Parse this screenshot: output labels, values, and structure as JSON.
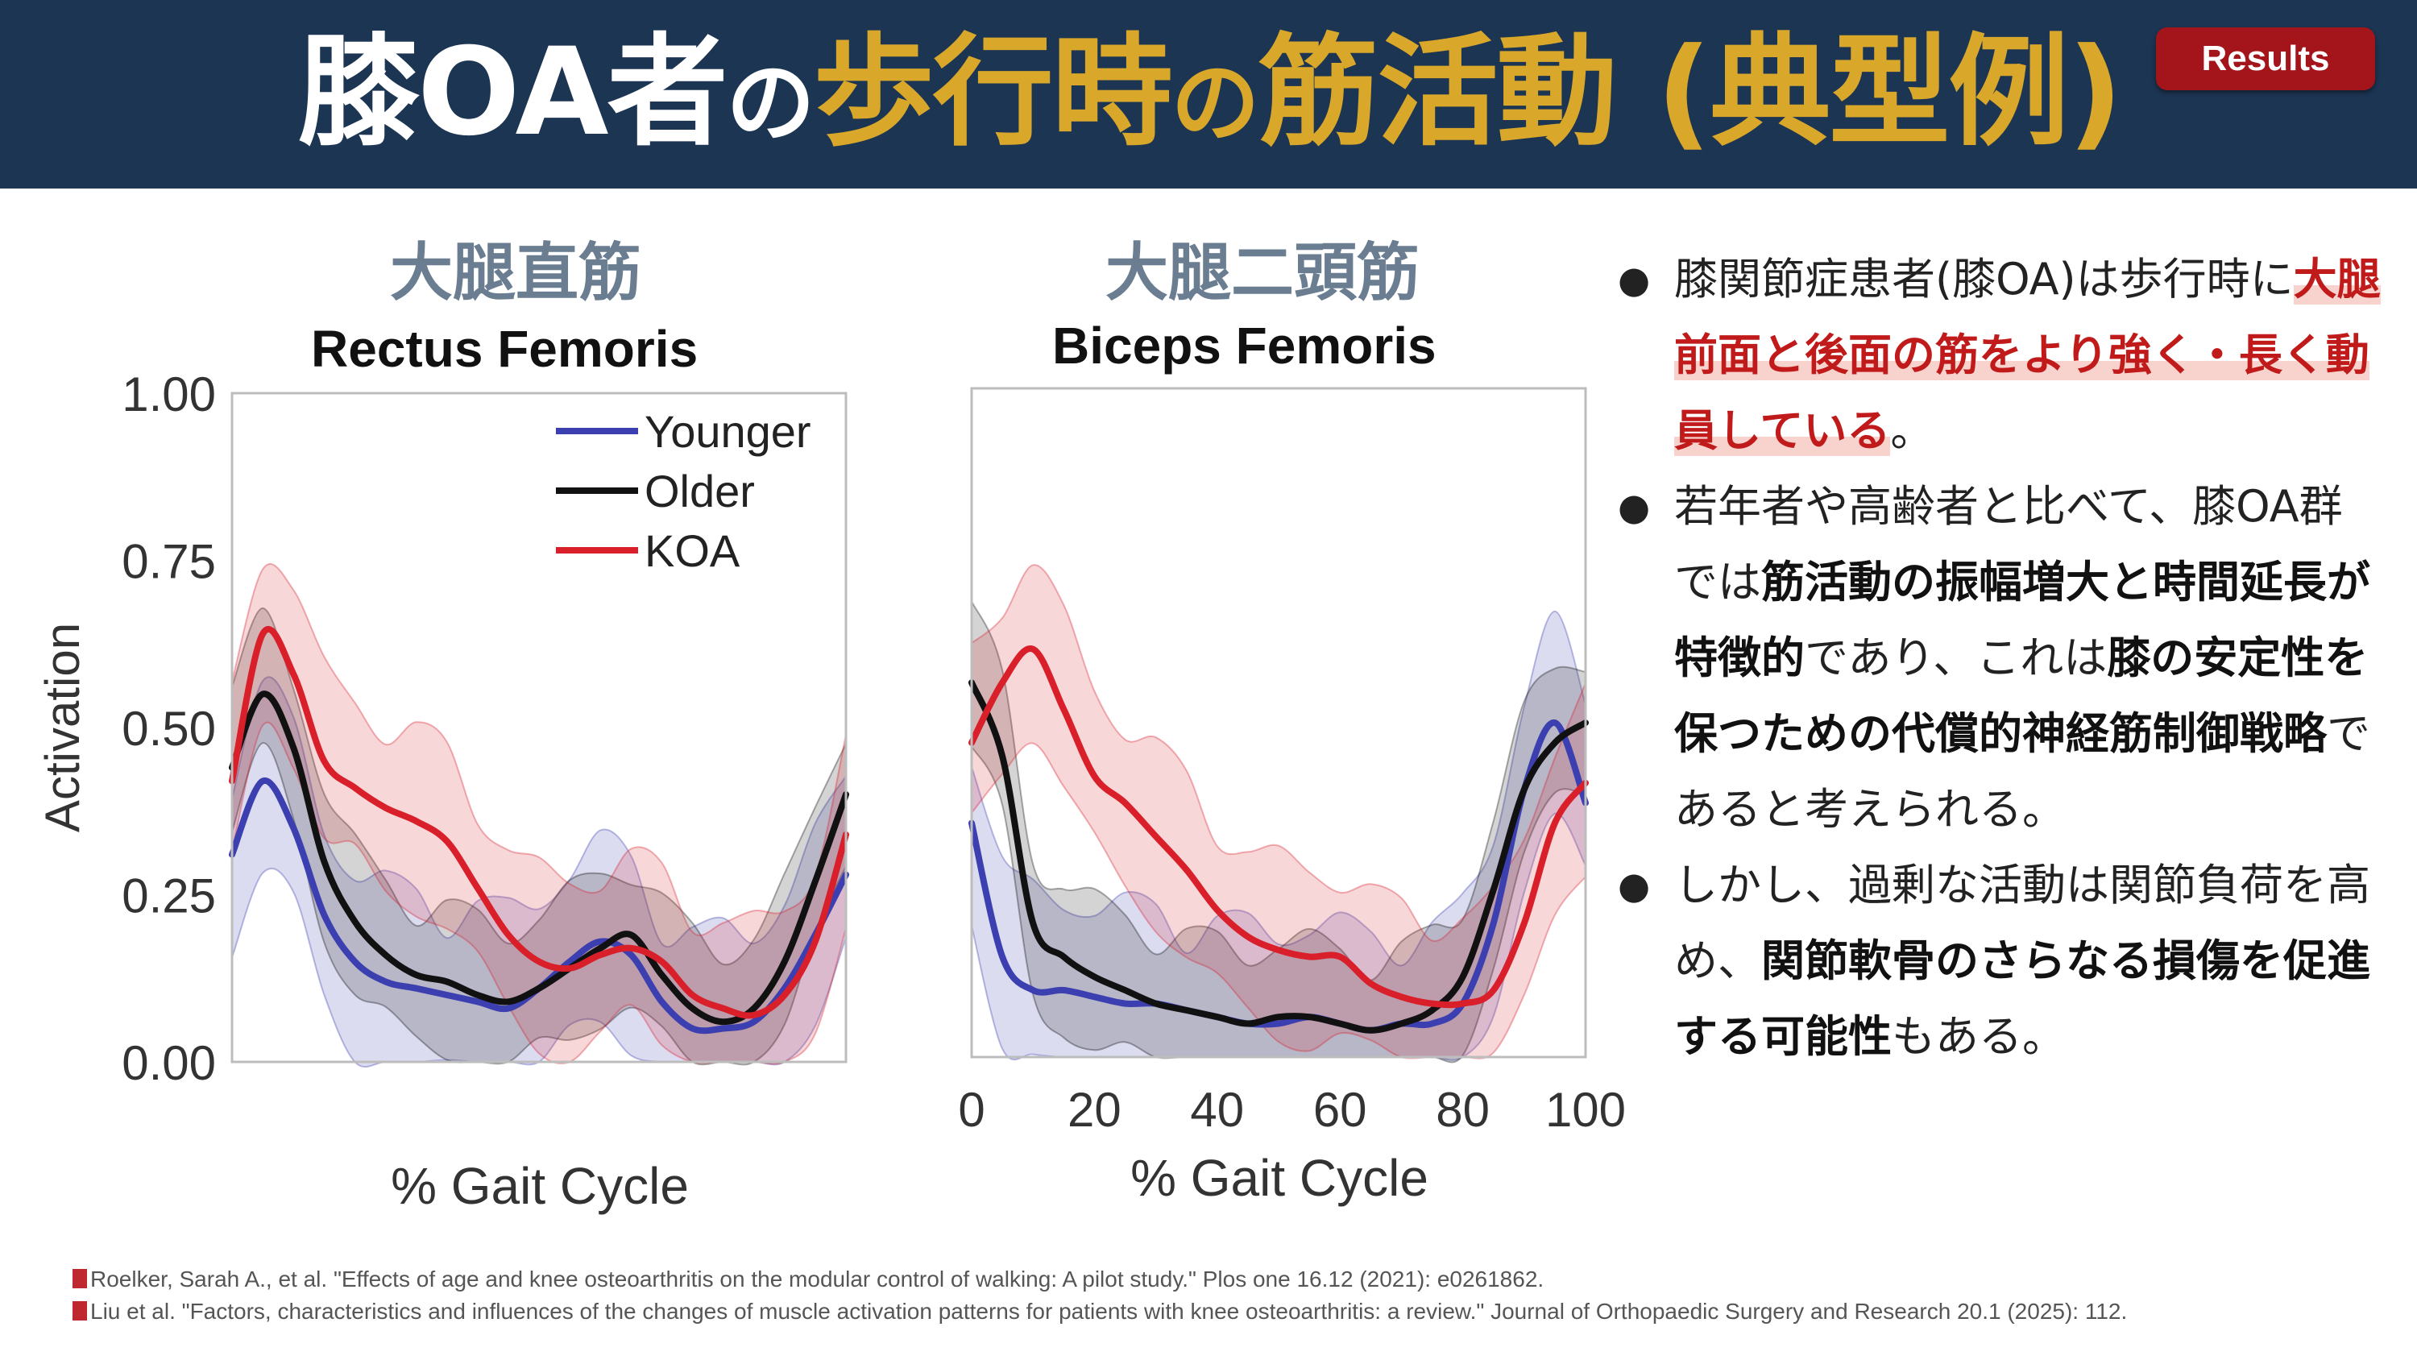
{
  "header": {
    "title_part1": "膝OA者",
    "title_part2": "の",
    "title_part3": "歩行時",
    "title_part4": "の",
    "title_part5": "筋活動 (典型例)",
    "badge": "Results",
    "colors": {
      "background": "#1c3553",
      "accent": "#d9a72a",
      "badge": "#a3141b"
    }
  },
  "charts": [
    {
      "title_jp": "大腿直筋",
      "title_en": "Rectus Femoris"
    },
    {
      "title_jp": "大腿二頭筋",
      "title_en": "Biceps Femoris"
    }
  ],
  "chart_data": [
    {
      "type": "line",
      "title": "Rectus Femoris",
      "xlabel": "% Gait Cycle",
      "ylabel": "Activation",
      "xlim": [
        0,
        100
      ],
      "ylim": [
        0,
        1
      ],
      "yticks": [
        "0.00",
        "0.25",
        "0.50",
        "0.75",
        "1.00"
      ],
      "xticks": [],
      "legend": "top-right",
      "x": [
        0,
        5,
        10,
        15,
        20,
        25,
        30,
        35,
        40,
        45,
        50,
        55,
        60,
        65,
        70,
        75,
        80,
        85,
        90,
        95,
        100
      ],
      "series": [
        {
          "name": "Younger",
          "color": "#3b3fb0",
          "values": [
            0.31,
            0.42,
            0.35,
            0.22,
            0.15,
            0.12,
            0.11,
            0.1,
            0.09,
            0.08,
            0.11,
            0.15,
            0.18,
            0.16,
            0.09,
            0.05,
            0.05,
            0.06,
            0.11,
            0.19,
            0.28
          ]
        },
        {
          "name": "Older",
          "color": "#111111",
          "values": [
            0.44,
            0.55,
            0.47,
            0.3,
            0.21,
            0.16,
            0.13,
            0.12,
            0.1,
            0.09,
            0.11,
            0.14,
            0.17,
            0.19,
            0.13,
            0.08,
            0.06,
            0.08,
            0.15,
            0.27,
            0.4
          ]
        },
        {
          "name": "KOA",
          "color": "#d81f2a",
          "values": [
            0.42,
            0.64,
            0.58,
            0.45,
            0.41,
            0.38,
            0.36,
            0.33,
            0.26,
            0.19,
            0.15,
            0.14,
            0.16,
            0.17,
            0.15,
            0.1,
            0.08,
            0.07,
            0.1,
            0.18,
            0.34
          ]
        }
      ]
    },
    {
      "type": "line",
      "title": "Biceps Femoris",
      "xlabel": "% Gait Cycle",
      "ylabel": "",
      "xlim": [
        0,
        100
      ],
      "ylim": [
        0,
        1
      ],
      "yticks": [],
      "xticks": [
        "0",
        "20",
        "40",
        "60",
        "80",
        "100"
      ],
      "x": [
        0,
        5,
        10,
        15,
        20,
        25,
        30,
        35,
        40,
        45,
        50,
        55,
        60,
        65,
        70,
        75,
        80,
        85,
        90,
        95,
        100
      ],
      "series": [
        {
          "name": "Younger",
          "color": "#3b3fb0",
          "values": [
            0.35,
            0.15,
            0.1,
            0.1,
            0.09,
            0.08,
            0.08,
            0.07,
            0.06,
            0.05,
            0.05,
            0.06,
            0.05,
            0.04,
            0.05,
            0.05,
            0.08,
            0.2,
            0.4,
            0.5,
            0.38
          ]
        },
        {
          "name": "Older",
          "color": "#111111",
          "values": [
            0.56,
            0.45,
            0.2,
            0.15,
            0.12,
            0.1,
            0.08,
            0.07,
            0.06,
            0.05,
            0.06,
            0.06,
            0.05,
            0.04,
            0.05,
            0.07,
            0.12,
            0.25,
            0.4,
            0.47,
            0.5
          ]
        },
        {
          "name": "KOA",
          "color": "#d81f2a",
          "values": [
            0.47,
            0.56,
            0.61,
            0.52,
            0.42,
            0.38,
            0.33,
            0.28,
            0.22,
            0.18,
            0.16,
            0.15,
            0.15,
            0.11,
            0.09,
            0.08,
            0.08,
            0.1,
            0.2,
            0.35,
            0.41
          ]
        }
      ]
    }
  ],
  "bullets": [
    {
      "segments": [
        {
          "t": "膝関節症患者(膝OA)は歩行時に",
          "s": "n"
        },
        {
          "t": "大腿前面と後面の筋をより強く・長く動員している",
          "s": "hl"
        },
        {
          "t": "。",
          "s": "n"
        }
      ]
    },
    {
      "segments": [
        {
          "t": "若年者や高齢者と比べて、膝OA群では",
          "s": "n"
        },
        {
          "t": "筋活動の振幅増大と時間延長が特徴的",
          "s": "b"
        },
        {
          "t": "であり、これは",
          "s": "n"
        },
        {
          "t": "膝の安定性を保つための代償的神経筋制御戦略",
          "s": "b"
        },
        {
          "t": "であると考えられる。",
          "s": "n"
        }
      ]
    },
    {
      "segments": [
        {
          "t": "しかし、過剰な活動は関節負荷を高め、",
          "s": "n"
        },
        {
          "t": "関節軟骨のさらなる損傷を促進する可能性",
          "s": "b"
        },
        {
          "t": "もある。",
          "s": "n"
        }
      ]
    }
  ],
  "references": [
    "Roelker, Sarah A., et al. \"Effects of age and knee osteoarthritis on the modular control of walking: A pilot study.\" Plos one 16.12 (2021): e0261862.",
    "Liu et al. \"Factors, characteristics and influences of the changes of muscle activation patterns for patients with knee osteoarthritis: a review.\" Journal of Orthopaedic Surgery and Research 20.1 (2025): 112."
  ]
}
